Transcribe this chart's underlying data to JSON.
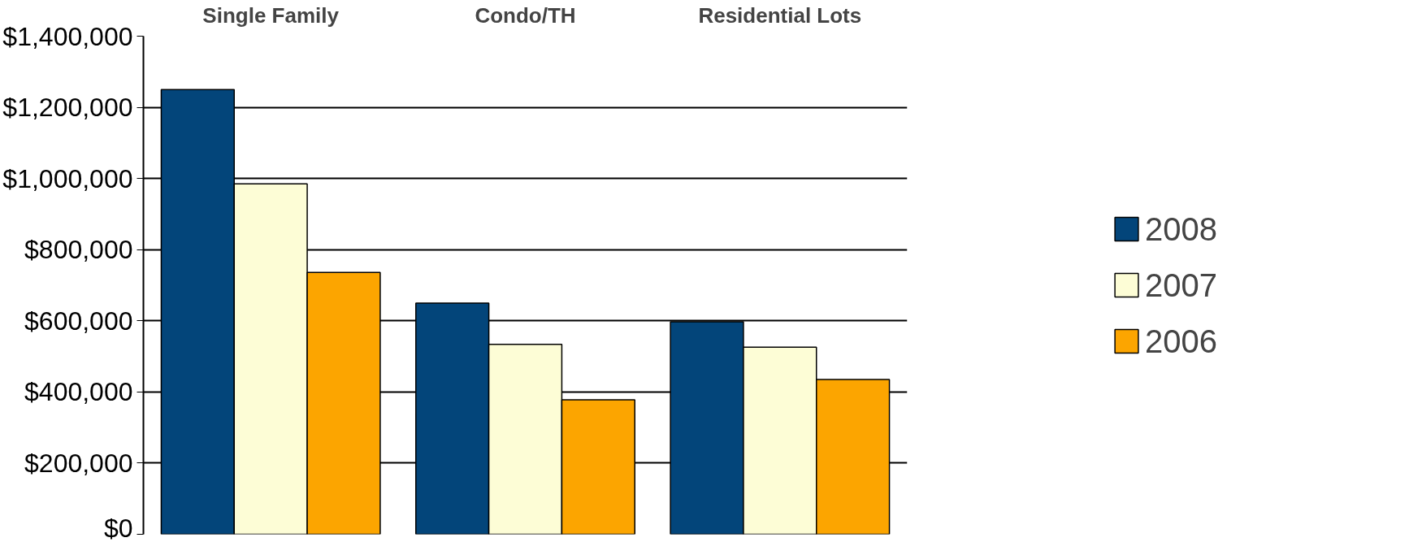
{
  "chart_data": {
    "type": "bar",
    "categories": [
      "Single Family",
      "Condo/TH",
      "Residential Lots"
    ],
    "series": [
      {
        "name": "2008",
        "color": "#03457a",
        "values": [
          1250000,
          650000,
          597000
        ]
      },
      {
        "name": "2007",
        "color": "#fdfdd6",
        "values": [
          985000,
          534000,
          526000
        ]
      },
      {
        "name": "2006",
        "color": "#fca500",
        "values": [
          736000,
          378000,
          435000
        ]
      }
    ],
    "ylim": [
      0,
      1400000
    ],
    "yticks": [
      {
        "value": 0,
        "label": "$0"
      },
      {
        "value": 200000,
        "label": "$200,000"
      },
      {
        "value": 400000,
        "label": "$400,000"
      },
      {
        "value": 600000,
        "label": "$600,000"
      },
      {
        "value": 800000,
        "label": "$800,000"
      },
      {
        "value": 1000000,
        "label": "$1,000,000"
      },
      {
        "value": 1200000,
        "label": "$1,200,000"
      },
      {
        "value": 1400000,
        "label": "$1,400,000"
      }
    ],
    "grid": "y",
    "legend": "right"
  }
}
